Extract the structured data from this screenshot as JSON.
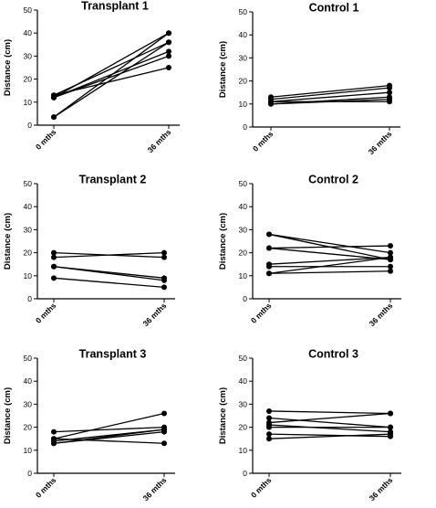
{
  "chart_data": [
    {
      "type": "line",
      "title": "Transplant 1",
      "ylabel": "Distance (cm)",
      "categories": [
        "0 mths",
        "36 mths"
      ],
      "ylim": [
        0,
        50
      ],
      "yticks": [
        0,
        10,
        20,
        30,
        40,
        50
      ],
      "grid": false,
      "series": [
        {
          "values": [
            3.5,
            40
          ]
        },
        {
          "values": [
            3.5,
            36
          ]
        },
        {
          "values": [
            12,
            40
          ]
        },
        {
          "values": [
            12,
            32
          ]
        },
        {
          "values": [
            13,
            36
          ]
        },
        {
          "values": [
            13,
            25
          ]
        },
        {
          "values": [
            12,
            30
          ]
        }
      ]
    },
    {
      "type": "line",
      "title": "Control 1",
      "ylabel": "Distance (cm)",
      "categories": [
        "0 mths",
        "36 mths"
      ],
      "ylim": [
        0,
        50
      ],
      "yticks": [
        0,
        10,
        20,
        30,
        40,
        50
      ],
      "grid": false,
      "series": [
        {
          "values": [
            13,
            18
          ]
        },
        {
          "values": [
            12,
            17
          ]
        },
        {
          "values": [
            11,
            15
          ]
        },
        {
          "values": [
            10,
            12
          ]
        },
        {
          "values": [
            10,
            13
          ]
        },
        {
          "values": [
            11,
            11
          ]
        }
      ]
    },
    {
      "type": "line",
      "title": "Transplant 2",
      "ylabel": "Distance (cm)",
      "categories": [
        "0 mths",
        "36 mths"
      ],
      "ylim": [
        0,
        50
      ],
      "yticks": [
        0,
        10,
        20,
        30,
        40,
        50
      ],
      "grid": false,
      "series": [
        {
          "values": [
            20,
            18
          ]
        },
        {
          "values": [
            18,
            20
          ]
        },
        {
          "values": [
            14,
            8
          ]
        },
        {
          "values": [
            14,
            9
          ]
        },
        {
          "values": [
            9,
            5
          ]
        }
      ]
    },
    {
      "type": "line",
      "title": "Control 2",
      "ylabel": "Distance (cm)",
      "categories": [
        "0 mths",
        "36 mths"
      ],
      "ylim": [
        0,
        50
      ],
      "yticks": [
        0,
        10,
        20,
        30,
        40,
        50
      ],
      "grid": false,
      "series": [
        {
          "values": [
            28,
            20
          ]
        },
        {
          "values": [
            28,
            17
          ]
        },
        {
          "values": [
            22,
            23
          ]
        },
        {
          "values": [
            22,
            17
          ]
        },
        {
          "values": [
            15,
            18
          ]
        },
        {
          "values": [
            14,
            14
          ]
        },
        {
          "values": [
            11,
            12
          ]
        },
        {
          "values": [
            11,
            18
          ]
        }
      ]
    },
    {
      "type": "line",
      "title": "Transplant 3",
      "ylabel": "Distance (cm)",
      "categories": [
        "0 mths",
        "36 mths"
      ],
      "ylim": [
        0,
        50
      ],
      "yticks": [
        0,
        10,
        20,
        30,
        40,
        50
      ],
      "grid": false,
      "series": [
        {
          "values": [
            18,
            20
          ]
        },
        {
          "values": [
            15,
            26
          ]
        },
        {
          "values": [
            14,
            19
          ]
        },
        {
          "values": [
            13,
            18
          ]
        },
        {
          "values": [
            15,
            13
          ]
        },
        {
          "values": [
            13,
            19
          ]
        }
      ]
    },
    {
      "type": "line",
      "title": "Control 3",
      "ylabel": "Distance (cm)",
      "categories": [
        "0 mths",
        "36 mths"
      ],
      "ylim": [
        0,
        50
      ],
      "yticks": [
        0,
        10,
        20,
        30,
        40,
        50
      ],
      "grid": false,
      "series": [
        {
          "values": [
            27,
            26
          ]
        },
        {
          "values": [
            24,
            20
          ]
        },
        {
          "values": [
            22,
            26
          ]
        },
        {
          "values": [
            21,
            18
          ]
        },
        {
          "values": [
            20,
            20
          ]
        },
        {
          "values": [
            17,
            16
          ]
        },
        {
          "values": [
            15,
            17
          ]
        }
      ]
    }
  ]
}
